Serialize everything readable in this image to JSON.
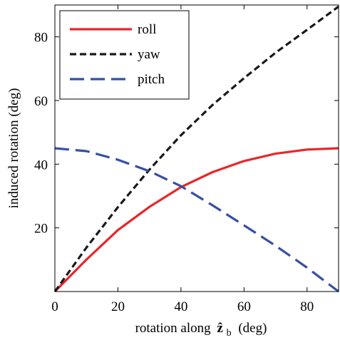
{
  "chart_data": {
    "type": "line",
    "title": "",
    "xlabel": "rotation along",
    "xlabel_symbol": "ẑ",
    "xlabel_subscript": "b",
    "xlabel_unit": "(deg)",
    "ylabel": "induced rotation (deg)",
    "xlim": [
      0,
      90
    ],
    "ylim": [
      0,
      90
    ],
    "xticks": [
      0,
      20,
      40,
      60,
      80
    ],
    "yticks": [
      20,
      40,
      60,
      80
    ],
    "grid": false,
    "legend_position": "top-left",
    "series": [
      {
        "name": "roll",
        "color": "#e8262a",
        "dash": "solid",
        "x": [
          0,
          10,
          20,
          30,
          40,
          50,
          60,
          70,
          80,
          90
        ],
        "y": [
          0,
          10,
          19.3,
          26.6,
          32.8,
          37.5,
          41,
          43.3,
          44.6,
          45
        ]
      },
      {
        "name": "yaw",
        "color": "#1a1a1a",
        "dash": "dashed",
        "x": [
          0,
          10,
          20,
          30,
          40,
          50,
          60,
          70,
          80,
          90
        ],
        "y": [
          0,
          13.8,
          26.5,
          38.3,
          49.1,
          58.6,
          67,
          75,
          82.2,
          89.5
        ]
      },
      {
        "name": "pitch",
        "color": "#3550a3",
        "dash": "long-dashed",
        "x": [
          0,
          10,
          20,
          30,
          40,
          50,
          60,
          70,
          80,
          90
        ],
        "y": [
          45,
          44.1,
          41.4,
          37.8,
          33.1,
          27.1,
          20.8,
          14.4,
          7.5,
          0
        ]
      }
    ]
  }
}
